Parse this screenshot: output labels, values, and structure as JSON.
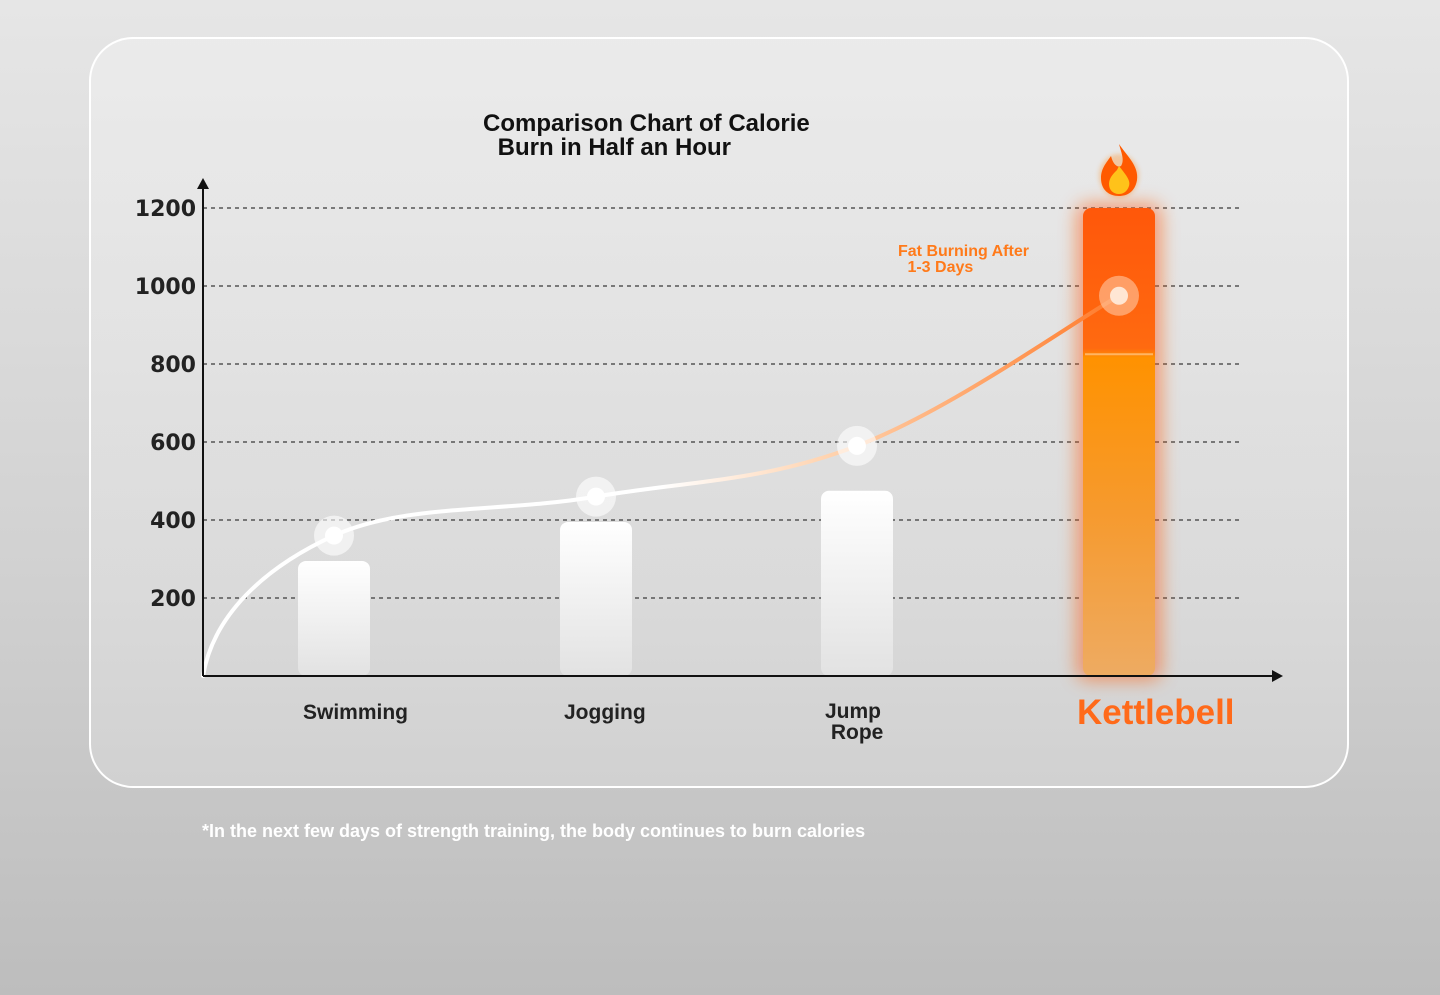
{
  "chart_data": {
    "type": "bar",
    "title_lines": [
      "Comparison Chart of Calorie",
      " Burn in Half an Hour"
    ],
    "categories": [
      {
        "lines": [
          "Swimming"
        ]
      },
      {
        "lines": [
          "Jogging"
        ]
      },
      {
        "lines": [
          "Jump",
          " Rope"
        ]
      },
      {
        "lines": [
          "Kettlebell"
        ],
        "highlight": true
      }
    ],
    "values": [
      295,
      395,
      475,
      1200
    ],
    "curve_points": [
      360,
      460,
      590,
      975
    ],
    "y_ticks": [
      200,
      400,
      600,
      800,
      1000,
      1200
    ],
    "ylim": [
      0,
      1200
    ],
    "grid": "horizontal dashed",
    "annotation_lines": [
      "Fat Burning After",
      " 1-3 Days"
    ],
    "highlight_icon": "fire-icon",
    "colors": {
      "bar": "#ffffff",
      "highlight_top": "#ff5a0a",
      "highlight_mid": "#ff8c00",
      "highlight_bottom": "#f0a95e",
      "annotation": "#ff7a1a",
      "axis": "#111111",
      "grid": "#555555"
    }
  },
  "footnote": "*In the next few days of strength training, the body continues to burn calories"
}
